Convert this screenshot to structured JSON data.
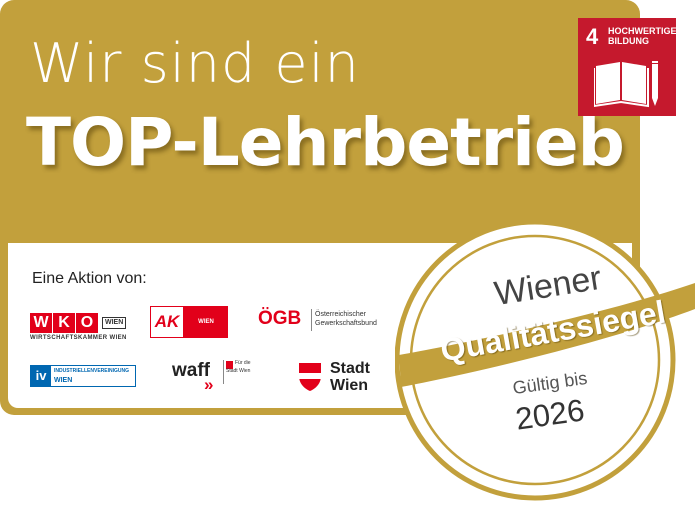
{
  "headline": {
    "line1": "Wir sind ein",
    "line2": "TOP-Lehrbetrieb"
  },
  "sdg": {
    "number": "4",
    "title_line1": "HOCHWERTIGE",
    "title_line2": "BILDUNG",
    "icon": "book-pencil-icon",
    "color": "#c5192d"
  },
  "aktion_label": "Eine Aktion von:",
  "logos": {
    "wko": {
      "letters": [
        "W",
        "K",
        "O"
      ],
      "tag": "WIEN",
      "sub": "WIRTSCHAFTSKAMMER WIEN",
      "color": "#e2001a"
    },
    "ak": {
      "mark": "AK",
      "tag": "WIEN",
      "color": "#e2001a"
    },
    "oegb": {
      "mark": "ÖGB",
      "line1": "Österreichischer",
      "line2": "Gewerkschaftsbund",
      "color": "#e2001a"
    },
    "iv": {
      "mark": "iv",
      "line1": "INDUSTRIELLENVEREINIGUNG",
      "line2": "WIEN",
      "color": "#0067b1"
    },
    "waff": {
      "mark": "waff",
      "arrows": "»",
      "line1": "Für die",
      "line2": "Stadt Wien"
    },
    "stadtwien": {
      "line1": "Stadt",
      "line2": "Wien",
      "color": "#e2001a"
    }
  },
  "seal": {
    "top": "Wiener",
    "band": "Qualitätssiegel",
    "valid_label": "Gültig bis",
    "year": "2026",
    "gold": "#c2a03c"
  },
  "colors": {
    "gold": "#c2a03c",
    "white": "#ffffff",
    "red": "#e2001a"
  }
}
